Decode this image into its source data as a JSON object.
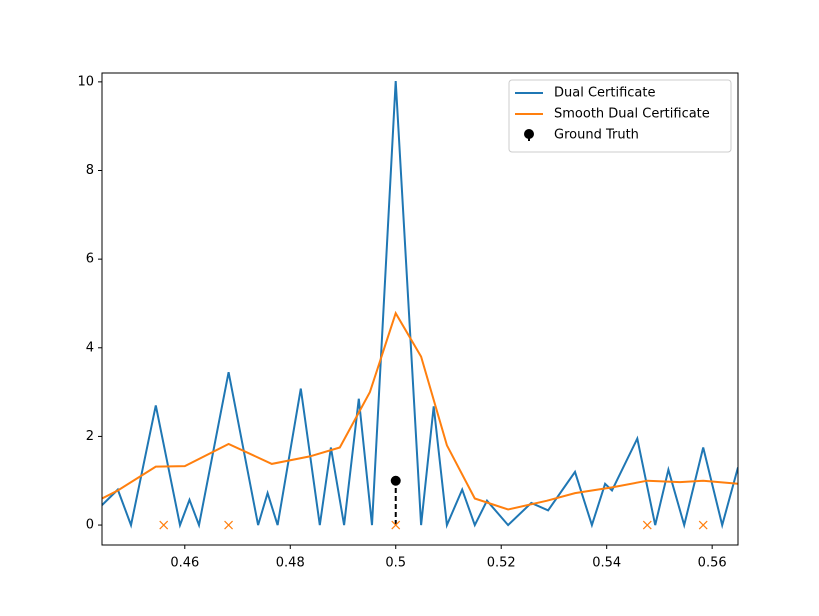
{
  "chart_data": {
    "type": "line",
    "xlim": [
      0.4443,
      0.5649
    ],
    "ylim": [
      -0.45,
      10.2
    ],
    "xticks": [
      0.46,
      0.48,
      0.5,
      0.52,
      0.54,
      0.56
    ],
    "yticks": [
      0,
      2,
      4,
      6,
      8,
      10
    ],
    "legend": "upper right",
    "series": [
      {
        "name": "Dual Certificate",
        "color": "#1f77b4",
        "x": [
          0.4443,
          0.4473,
          0.4498,
          0.4545,
          0.4591,
          0.4609,
          0.4627,
          0.4683,
          0.4739,
          0.4757,
          0.4776,
          0.482,
          0.4856,
          0.4877,
          0.4902,
          0.493,
          0.4955,
          0.5,
          0.5048,
          0.5072,
          0.5097,
          0.5126,
          0.515,
          0.5173,
          0.5213,
          0.5257,
          0.5289,
          0.534,
          0.5372,
          0.5397,
          0.541,
          0.5458,
          0.5492,
          0.5517,
          0.5547,
          0.5583,
          0.5619,
          0.5649
        ],
        "values": [
          0.45,
          0.8,
          0,
          2.7,
          0,
          0.57,
          0,
          3.45,
          0,
          0.72,
          0,
          3.08,
          0,
          1.75,
          0,
          2.85,
          0,
          10.02,
          0,
          2.68,
          0,
          0.8,
          0,
          0.55,
          0,
          0.5,
          0.33,
          1.2,
          0,
          0.93,
          0.78,
          1.95,
          0,
          1.25,
          0,
          1.75,
          0,
          1.3
        ]
      },
      {
        "name": "Smooth Dual Certificate",
        "color": "#ff7f0e",
        "x": [
          0.4443,
          0.4473,
          0.4545,
          0.46,
          0.4683,
          0.4765,
          0.4837,
          0.4894,
          0.4951,
          0.5,
          0.5048,
          0.5097,
          0.515,
          0.5213,
          0.5287,
          0.534,
          0.541,
          0.5477,
          0.5539,
          0.5583,
          0.5649
        ],
        "values": [
          0.6,
          0.78,
          1.32,
          1.33,
          1.83,
          1.38,
          1.55,
          1.75,
          3.0,
          4.78,
          3.8,
          1.8,
          0.6,
          0.35,
          0.55,
          0.72,
          0.85,
          1.0,
          0.97,
          1.0,
          0.93
        ]
      },
      {
        "name": "Ground Truth",
        "color": "#000000",
        "stem": true,
        "x": [
          0.5
        ],
        "values": [
          1
        ]
      }
    ],
    "markers": {
      "color": "#ff7f0e",
      "x": [
        0.456,
        0.4683,
        0.5,
        0.5477,
        0.5583
      ],
      "values": [
        0,
        0,
        0,
        0,
        0
      ]
    }
  }
}
